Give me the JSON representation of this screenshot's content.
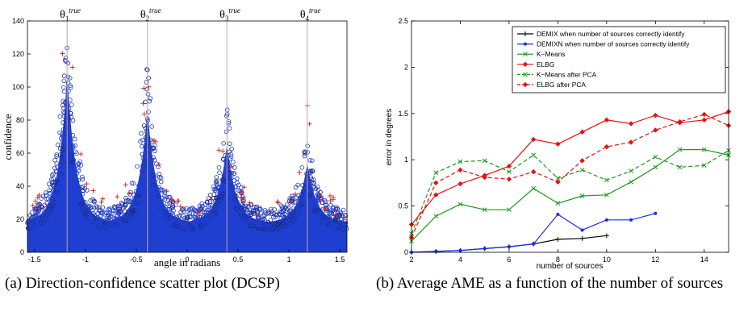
{
  "captions": {
    "a": "(a) Direction-confidence scatter plot (DCSP)",
    "b": "(b) Average AME as a function of the number of sources"
  },
  "chart_data": [
    {
      "type": "scatter",
      "xlabel": "angle in radians",
      "ylabel": "confidence",
      "xlim": [
        -1.57,
        1.57
      ],
      "ylim": [
        0,
        140
      ],
      "xticks": [
        -1.5,
        -1,
        -0.5,
        0,
        0.5,
        1,
        1.5
      ],
      "xtick_labels": [
        "-1.5",
        "-1",
        "-0.5",
        "0",
        "0.5",
        "1",
        "1.5"
      ],
      "yticks": [
        0,
        20,
        40,
        60,
        80,
        100,
        120,
        140
      ],
      "grid": false,
      "markers": {
        "main": "o",
        "main_color": "#1f3fd0",
        "outliers": "+",
        "outliers_color": "#cc2020"
      },
      "true_directions": [
        {
          "label": "θ1true",
          "base": "θ",
          "sub": "1",
          "sup": "true",
          "x": -1.18,
          "peak": 131
        },
        {
          "label": "θ2true",
          "base": "θ",
          "sub": "2",
          "sup": "true",
          "x": -0.39,
          "peak": 105
        },
        {
          "label": "θ3true",
          "base": "θ",
          "sub": "3",
          "sup": "true",
          "x": 0.39,
          "peak": 80
        },
        {
          "label": "θ4true",
          "base": "θ",
          "sub": "4",
          "sup": "true",
          "x": 1.18,
          "peak": 66
        }
      ],
      "baseline_confidence": 22,
      "line_color": "#c8a0a8"
    },
    {
      "type": "line",
      "xlabel": "number of sources",
      "ylabel": "error in degrees",
      "xlim": [
        2,
        15
      ],
      "ylim": [
        0,
        2.5
      ],
      "xticks": [
        2,
        4,
        6,
        8,
        10,
        12,
        14
      ],
      "yticks": [
        0,
        0.5,
        1,
        1.5,
        2,
        2.5
      ],
      "legend": "top-right",
      "series": [
        {
          "name": "DEMIX when number of sources correctly identify",
          "color": "#000000",
          "dash": "solid",
          "marker": "plus",
          "x": [
            2,
            3,
            4,
            5,
            6,
            7,
            8,
            9,
            10
          ],
          "values": [
            0.0,
            0.01,
            0.02,
            0.04,
            0.06,
            0.09,
            0.14,
            0.15,
            0.18
          ]
        },
        {
          "name": "DEMIXN when number of sources correctly identify",
          "color": "#1a2be8",
          "dash": "solid",
          "marker": "dot",
          "x": [
            2,
            3,
            4,
            5,
            6,
            7,
            8,
            9,
            10,
            11,
            12
          ],
          "values": [
            0.0,
            0.01,
            0.02,
            0.04,
            0.06,
            0.09,
            0.41,
            0.24,
            0.35,
            0.35,
            0.42
          ]
        },
        {
          "name": "K−Means",
          "color": "#1a9a1a",
          "dash": "solid",
          "marker": "x",
          "x": [
            2,
            3,
            4,
            5,
            6,
            7,
            8,
            9,
            10,
            11,
            12,
            13,
            14,
            15
          ],
          "values": [
            0.12,
            0.39,
            0.52,
            0.46,
            0.46,
            0.69,
            0.53,
            0.61,
            0.62,
            0.76,
            0.92,
            1.11,
            1.11,
            1.05
          ]
        },
        {
          "name": "ELBG",
          "color": "#e81010",
          "dash": "solid",
          "marker": "diamond",
          "x": [
            2,
            3,
            4,
            5,
            6,
            7,
            8,
            9,
            10,
            11,
            12,
            13,
            14,
            15
          ],
          "values": [
            0.3,
            0.62,
            0.74,
            0.83,
            0.93,
            1.22,
            1.17,
            1.3,
            1.43,
            1.39,
            1.48,
            1.4,
            1.43,
            1.52
          ]
        },
        {
          "name": "K−Means after PCA",
          "color": "#1a9a1a",
          "dash": "dashed",
          "marker": "x",
          "x": [
            2,
            3,
            4,
            5,
            6,
            7,
            8,
            9,
            10,
            11,
            12,
            13,
            14,
            15
          ],
          "values": [
            0.2,
            0.86,
            0.98,
            0.99,
            0.87,
            1.05,
            0.8,
            0.89,
            0.78,
            0.88,
            1.03,
            0.92,
            0.94,
            1.1
          ]
        },
        {
          "name": "ELBG after PCA",
          "color": "#e81010",
          "dash": "dashed",
          "marker": "diamond",
          "x": [
            2,
            3,
            4,
            5,
            6,
            7,
            8,
            9,
            10,
            11,
            12,
            13,
            14,
            15
          ],
          "values": [
            0.16,
            0.75,
            0.89,
            0.81,
            0.79,
            0.87,
            0.76,
            0.99,
            1.14,
            1.19,
            1.32,
            1.41,
            1.49,
            1.37
          ]
        }
      ]
    }
  ]
}
